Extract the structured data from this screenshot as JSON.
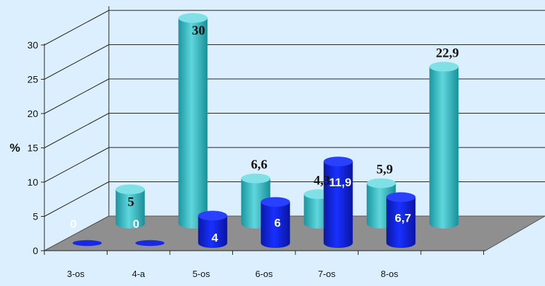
{
  "chart_data": {
    "type": "bar",
    "subtype": "3d-cylinder-grouped",
    "ylabel": "%",
    "ylim": [
      0,
      30
    ],
    "yticks": [
      "0",
      "5",
      "10",
      "15",
      "20",
      "25",
      "30"
    ],
    "categories": [
      "3-os",
      "4-a",
      "5-os",
      "6-os",
      "7-os",
      "8-os"
    ],
    "series": [
      {
        "color": "#0a1fd6",
        "values": [
          0,
          0,
          4,
          6,
          11.9,
          6.7
        ],
        "labels": [
          "0",
          "0",
          "4",
          "6",
          "11,9",
          "6,7"
        ]
      },
      {
        "color": "#2bb5bf",
        "values": [
          5,
          30,
          6.6,
          4.3,
          5.9,
          22.9
        ],
        "labels": [
          "5",
          "30",
          "6,6",
          "4,3",
          "5,9",
          "22,9"
        ]
      }
    ],
    "grid": true,
    "legend": "none"
  }
}
